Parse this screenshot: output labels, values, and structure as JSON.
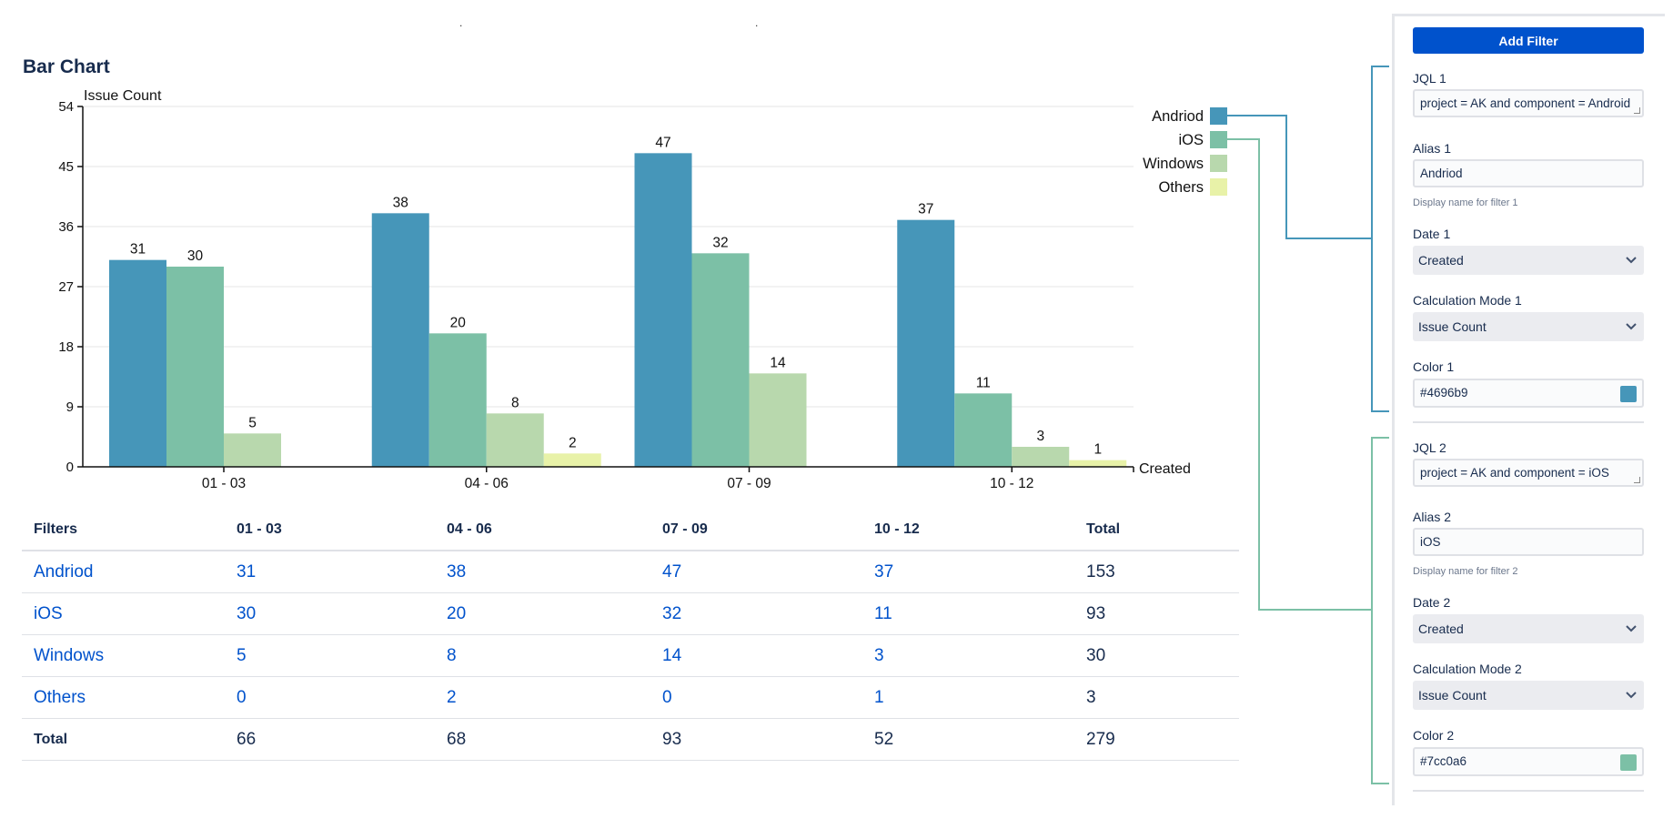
{
  "header_marks": [
    ".",
    "."
  ],
  "chart_data": {
    "type": "bar",
    "title": "Bar Chart",
    "ylabel": "Issue Count",
    "xlabel": "Created",
    "ylim": [
      0,
      54
    ],
    "yticks": [
      0,
      9,
      18,
      27,
      36,
      45,
      54
    ],
    "grid": true,
    "legend_position": "top-right",
    "categories": [
      "01 - 03",
      "04 - 06",
      "07 - 09",
      "10 - 12"
    ],
    "series": [
      {
        "name": "Andriod",
        "color": "#4696b9",
        "values": [
          31,
          38,
          47,
          37
        ]
      },
      {
        "name": "iOS",
        "color": "#7cc0a6",
        "values": [
          30,
          20,
          32,
          11
        ]
      },
      {
        "name": "Windows",
        "color": "#b8d8ad",
        "values": [
          5,
          8,
          14,
          3
        ]
      },
      {
        "name": "Others",
        "color": "#e8f2a8",
        "values": [
          0,
          2,
          0,
          1
        ]
      }
    ]
  },
  "table": {
    "headers": [
      "Filters",
      "01 - 03",
      "04 - 06",
      "07 - 09",
      "10 - 12",
      "Total"
    ],
    "rows": [
      {
        "label": "Andriod",
        "values": [
          "31",
          "38",
          "47",
          "37"
        ],
        "total": "153"
      },
      {
        "label": "iOS",
        "values": [
          "30",
          "20",
          "32",
          "11"
        ],
        "total": "93"
      },
      {
        "label": "Windows",
        "values": [
          "5",
          "8",
          "14",
          "3"
        ],
        "total": "30"
      },
      {
        "label": "Others",
        "values": [
          "0",
          "2",
          "0",
          "1"
        ],
        "total": "3"
      }
    ],
    "total_row": {
      "label": "Total",
      "values": [
        "66",
        "68",
        "93",
        "52"
      ],
      "total": "279"
    }
  },
  "panel": {
    "add_filter": "Add Filter",
    "filter1": {
      "jql_label": "JQL 1",
      "jql_value": "project = AK and component = Android",
      "alias_label": "Alias 1",
      "alias_value": "Andriod",
      "alias_help": "Display name for filter 1",
      "date_label": "Date 1",
      "date_value": "Created",
      "calc_label": "Calculation Mode 1",
      "calc_value": "Issue Count",
      "color_label": "Color 1",
      "color_value": "#4696b9",
      "connector_color": "#4696b9"
    },
    "filter2": {
      "jql_label": "JQL 2",
      "jql_value": "project = AK and component = iOS",
      "alias_label": "Alias 2",
      "alias_value": "iOS",
      "alias_help": "Display name for filter 2",
      "date_label": "Date 2",
      "date_value": "Created",
      "calc_label": "Calculation Mode 2",
      "calc_value": "Issue Count",
      "color_label": "Color 2",
      "color_value": "#7cc0a6",
      "connector_color": "#7cc0a6"
    }
  }
}
